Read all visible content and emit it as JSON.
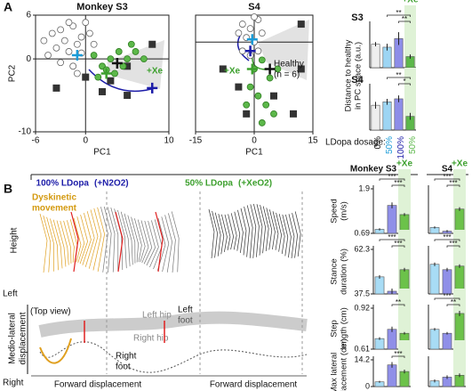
{
  "panel_a": {
    "label": "A"
  },
  "panel_b": {
    "label": "B",
    "header_s3": "Monkey S3",
    "header_s4": "S4",
    "cond1": "100% LDopa",
    "cond1_gas": "(+N2O2)",
    "cond2": "50% LDopa",
    "cond2_gas": "(+XeO2)",
    "dyskinetic": [
      "Dyskinetic",
      "movement"
    ],
    "height": "Height",
    "top_view": "(Top view)",
    "left": "Left",
    "right": "Right",
    "ml_label": [
      "Medio-lateral",
      "displacement"
    ],
    "left_hip": "Left hip",
    "left_foot": [
      "Left",
      "foot"
    ],
    "right_hip": "Right hip",
    "right_foot": [
      "Right",
      "foot"
    ],
    "forward": [
      "Forward displacement",
      "Forward displacement"
    ]
  },
  "chart_data": [
    {
      "type": "scatter",
      "title": "Monkey S3",
      "xlabel": "PC1",
      "ylabel": "PC2",
      "xlim": [
        -6,
        10
      ],
      "xticks": [
        -6,
        0,
        10
      ],
      "ylim": [
        -10,
        6
      ],
      "yticks": [
        -10,
        0,
        6
      ],
      "annotations": [
        "+Xe"
      ],
      "series": [
        {
          "marker": "open",
          "color": "#666666",
          "x": [
            -4,
            -3,
            -2.5,
            -1.5,
            -0.5,
            -3.5,
            -2,
            -1,
            -4.5,
            -3,
            -1.5,
            0,
            0.5,
            -2,
            -0.5,
            1,
            -5,
            -1
          ],
          "y": [
            3.5,
            4,
            2.5,
            4.5,
            3,
            1.5,
            1,
            2,
            0.5,
            -0.5,
            -1,
            5,
            3.5,
            5,
            0.8,
            2,
            2.5,
            -2
          ]
        },
        {
          "marker": "square",
          "color": "#333333",
          "x": [
            -3.5,
            0,
            2,
            5,
            3,
            8,
            5
          ],
          "y": [
            -4,
            -2.5,
            -4.5,
            -5,
            -3,
            2,
            -1
          ]
        },
        {
          "marker": "circle",
          "color": "#5cb84a",
          "x": [
            1,
            2,
            3,
            4,
            5,
            3.5,
            2.5,
            6,
            4.5,
            5.5,
            1.5,
            7
          ],
          "y": [
            0.5,
            -1,
            0,
            1,
            0,
            -2,
            -1.5,
            1,
            -1,
            2,
            -2.5,
            0
          ]
        },
        {
          "marker": "cross",
          "color": "#1a9bd7",
          "x": [
            -1
          ],
          "y": [
            0.5
          ]
        },
        {
          "marker": "cross",
          "color": "#111111",
          "x": [
            3.8
          ],
          "y": [
            -0.6
          ]
        },
        {
          "marker": "cross",
          "color": "#3da02e",
          "x": [
            2.5
          ],
          "y": [
            -2
          ]
        },
        {
          "marker": "cross",
          "color": "#1c1ca8",
          "x": [
            8
          ],
          "y": [
            -4
          ]
        }
      ]
    },
    {
      "type": "scatter",
      "title": "S4",
      "xlabel": "PC1",
      "xlim": [
        -15,
        15
      ],
      "xticks": [
        -15,
        0,
        15
      ],
      "ylim": [
        -10,
        3
      ],
      "annotations": [
        "+Xe",
        "Healthy",
        "(n = 6)"
      ],
      "series": [
        {
          "marker": "open",
          "color": "#666666",
          "x": [
            -3,
            -1,
            1,
            -2,
            0,
            -4,
            1,
            -1,
            2,
            -3,
            0
          ],
          "y": [
            2,
            1.5,
            2.5,
            0.5,
            0,
            1,
            -1,
            -1.5,
            1,
            -1,
            2.8
          ]
        },
        {
          "marker": "square",
          "color": "#333333",
          "x": [
            -8,
            -4,
            5,
            12,
            12,
            -2,
            10
          ],
          "y": [
            -3,
            -5,
            -6,
            -3,
            2,
            -8,
            -8
          ]
        },
        {
          "marker": "circle",
          "color": "#5cb84a",
          "x": [
            0,
            2,
            4,
            -1,
            1,
            3,
            5,
            -2,
            2,
            6
          ],
          "y": [
            -3,
            -2,
            -4,
            -5,
            -6,
            -7,
            -8,
            -7,
            -9,
            -3
          ]
        },
        {
          "marker": "cross",
          "color": "#1a9bd7",
          "x": [
            -0.5
          ],
          "y": [
            0.3
          ]
        },
        {
          "marker": "cross",
          "color": "#1c1ca8",
          "x": [
            -1
          ],
          "y": [
            -1
          ]
        },
        {
          "marker": "cross",
          "color": "#3da02e",
          "x": [
            -0.5
          ],
          "y": [
            -3
          ]
        },
        {
          "marker": "cross",
          "color": "#111111",
          "x": [
            4
          ],
          "y": [
            -3
          ]
        }
      ]
    },
    {
      "type": "bar",
      "title": "S3",
      "ylabel": [
        "Distance to healthy",
        "in PC space (a.u.)"
      ],
      "xe_label": "+Xe",
      "dosage_label": "LDopa dosage:",
      "categories": [
        "0%",
        "50%",
        "100%",
        "50%"
      ],
      "label_colors": [
        "#111111",
        "#1a9bd7",
        "#1c1ca8",
        "#5cb84a"
      ],
      "colors": [
        "#eeeeee",
        "#9dd5f3",
        "#8d8de8",
        "#5cb84a"
      ],
      "values": [
        5.5,
        4.8,
        6.8,
        2.6
      ],
      "errors": [
        0.5,
        0.8,
        1.5,
        0.5
      ],
      "ylim": [
        0,
        10
      ],
      "annotations": [
        "**",
        "**"
      ]
    },
    {
      "type": "bar",
      "title": "S4",
      "colors": [
        "#eeeeee",
        "#9dd5f3",
        "#8d8de8",
        "#5cb84a"
      ],
      "values": [
        5.8,
        6.6,
        7.3,
        3.2
      ],
      "errors": [
        0.8,
        0.7,
        0.8,
        0.8
      ],
      "ylim": [
        0,
        10
      ],
      "annotations": [
        "*",
        "**"
      ]
    },
    {
      "type": "bar",
      "ylabel": [
        "Speed",
        "(m/s)"
      ],
      "xe_label": "+Xe",
      "colors": [
        "#a8dcf5",
        "#8f8fe8",
        "#6cc24a"
      ],
      "values": [
        0.8,
        1.45,
        1.2
      ],
      "errors": [
        0.03,
        0.08,
        0.04
      ],
      "ylim": [
        0.69,
        1.9
      ],
      "yticks": [
        0.69,
        1.9
      ],
      "annotations": [
        "***",
        "***"
      ]
    },
    {
      "type": "bar",
      "xe_label": "+Xe",
      "colors": [
        "#a8dcf5",
        "#8f8fe8",
        "#6cc24a"
      ],
      "values": [
        0.85,
        0.75,
        1.35
      ],
      "errors": [
        0.03,
        0.03,
        0.05
      ],
      "ylim": [
        0.69,
        1.9
      ],
      "annotations": [
        "***",
        "***"
      ]
    },
    {
      "type": "bar",
      "ylabel": [
        "Stance",
        "duration (%)"
      ],
      "colors": [
        "#a8dcf5",
        "#8f8fe8",
        "#6cc24a"
      ],
      "values": [
        47,
        39,
        51
      ],
      "errors": [
        1,
        1.5,
        1
      ],
      "ylim": [
        37.5,
        62.3
      ],
      "yticks": [
        37.5,
        62.3
      ],
      "annotations": [
        "***",
        "***"
      ]
    },
    {
      "type": "bar",
      "colors": [
        "#a8dcf5",
        "#8f8fe8",
        "#6cc24a"
      ],
      "values": [
        54,
        51,
        53
      ],
      "errors": [
        1,
        1,
        1
      ],
      "ylim": [
        37.5,
        62.3
      ],
      "annotations": [
        "***",
        "***"
      ]
    },
    {
      "type": "bar",
      "ylabel": [
        "Step",
        "length (cm)"
      ],
      "colors": [
        "#a8dcf5",
        "#8f8fe8",
        "#6cc24a"
      ],
      "values": [
        0.69,
        0.76,
        0.73
      ],
      "errors": [
        0.01,
        0.02,
        0.01
      ],
      "ylim": [
        0.61,
        0.92
      ],
      "yticks": [
        0.61,
        0.92
      ],
      "annotations": [
        "**"
      ]
    },
    {
      "type": "bar",
      "colors": [
        "#a8dcf5",
        "#8f8fe8",
        "#6cc24a"
      ],
      "values": [
        0.76,
        0.73,
        0.88
      ],
      "errors": [
        0.01,
        0.01,
        0.02
      ],
      "ylim": [
        0.61,
        0.92
      ],
      "annotations": [
        "**",
        "***"
      ]
    },
    {
      "type": "bar",
      "ylabel": [
        "Max lateral",
        "displacement (cm)"
      ],
      "colors": [
        "#a8dcf5",
        "#8f8fe8",
        "#6cc24a"
      ],
      "values": [
        2.5,
        11.5,
        8
      ],
      "errors": [
        0.5,
        1.5,
        1
      ],
      "ylim": [
        0,
        14.2
      ],
      "yticks": [
        0,
        14.2
      ],
      "annotations": [
        "***"
      ]
    },
    {
      "type": "bar",
      "colors": [
        "#a8dcf5",
        "#8f8fe8",
        "#6cc24a"
      ],
      "values": [
        3,
        5,
        6
      ],
      "errors": [
        0.8,
        1,
        1
      ],
      "ylim": [
        0,
        14.2
      ]
    }
  ]
}
